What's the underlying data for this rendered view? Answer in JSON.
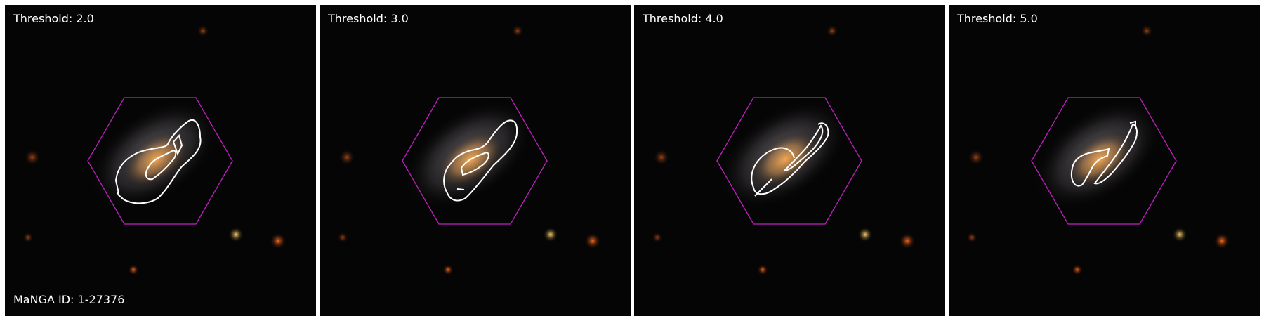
{
  "figure": {
    "manga_id_label": "MaNGA ID: 1-27376",
    "panels": [
      {
        "title": "Threshold: 2.0"
      },
      {
        "title": "Threshold: 3.0"
      },
      {
        "title": "Threshold: 4.0"
      },
      {
        "title": "Threshold: 5.0"
      }
    ]
  },
  "colors": {
    "background": "#050505",
    "hexagon": "#c020c0",
    "contour": "#ffffff",
    "galaxy_core": "#f0a050",
    "galaxy_halo": "#b0b0c0"
  }
}
